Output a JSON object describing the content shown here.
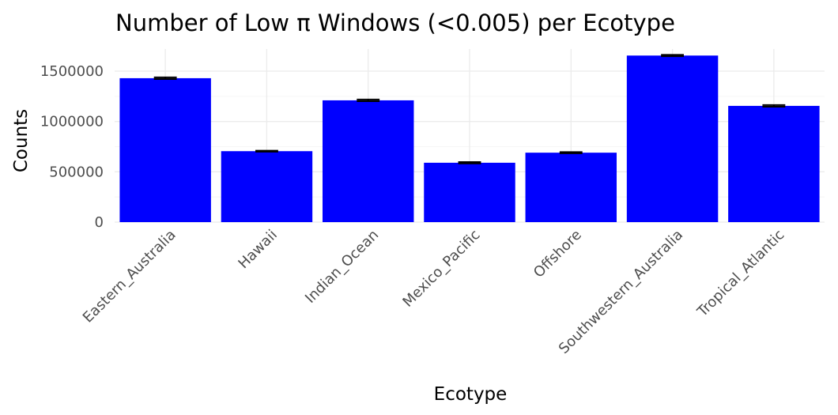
{
  "chart_data": {
    "type": "bar",
    "title": "Number of Low π Windows (<0.005) per Ecotype",
    "xlabel": "Ecotype",
    "ylabel": "Counts",
    "categories": [
      "Eastern_Australia",
      "Hawaii",
      "Indian_Ocean",
      "Mexico_Pacific",
      "Offshore",
      "Southwestern_Australia",
      "Tropical_Atlantic"
    ],
    "values": [
      1430000,
      705000,
      1210000,
      590000,
      690000,
      1655000,
      1155000
    ],
    "error_upper": [
      1438000,
      710000,
      1218000,
      597000,
      696000,
      1662000,
      1163000
    ],
    "error_lower": [
      1422000,
      700000,
      1202000,
      583000,
      684000,
      1648000,
      1147000
    ],
    "yticks": [
      0,
      500000,
      1000000,
      1500000
    ],
    "ytick_labels": [
      "0",
      "500000",
      "1000000",
      "1500000"
    ],
    "ylim": [
      0,
      1720000
    ],
    "bar_color": "#0000ff",
    "grid": true,
    "legend": "none"
  }
}
